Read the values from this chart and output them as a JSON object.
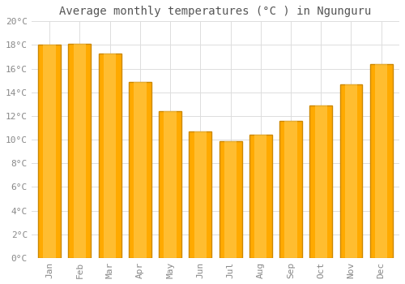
{
  "title": "Average monthly temperatures (°C ) in Ngunguru",
  "months": [
    "Jan",
    "Feb",
    "Mar",
    "Apr",
    "May",
    "Jun",
    "Jul",
    "Aug",
    "Sep",
    "Oct",
    "Nov",
    "Dec"
  ],
  "values": [
    18.0,
    18.1,
    17.3,
    14.9,
    12.4,
    10.7,
    9.9,
    10.4,
    11.6,
    12.9,
    14.7,
    16.4
  ],
  "bar_color": "#FFAA00",
  "bar_edge_color": "#CC8800",
  "background_color": "#FFFFFF",
  "grid_color": "#DDDDDD",
  "ylim": [
    0,
    20
  ],
  "ytick_step": 2,
  "title_fontsize": 10,
  "tick_fontsize": 8,
  "tick_color": "#888888",
  "font_family": "monospace"
}
